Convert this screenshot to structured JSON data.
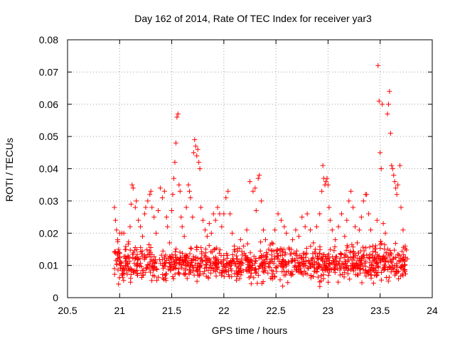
{
  "chart_data": {
    "type": "scatter",
    "title": "Day 162 of 2014, Rate Of TEC Index for receiver yar3",
    "xlabel": "GPS time / hours",
    "ylabel": "ROTI / TECUs",
    "xlim": [
      20.5,
      24
    ],
    "ylim": [
      0,
      0.08
    ],
    "x_ticks": [
      20.5,
      21,
      21.5,
      22,
      22.5,
      23,
      23.5,
      24
    ],
    "x_tick_labels": [
      "20.5",
      "21",
      "21.5",
      "22",
      "22.5",
      "23",
      "23.5",
      "24"
    ],
    "y_ticks": [
      0,
      0.01,
      0.02,
      0.03,
      0.04,
      0.05,
      0.06,
      0.07,
      0.08
    ],
    "y_tick_labels": [
      "0",
      "0.01",
      "0.02",
      "0.03",
      "0.04",
      "0.05",
      "0.06",
      "0.07",
      "0.08"
    ],
    "grid": true,
    "marker": "+",
    "color": "#ff0000",
    "x_data_range": [
      20.95,
      23.76
    ],
    "series": [
      {
        "name": "yar3",
        "points": [
          [
            20.95,
            0.028
          ],
          [
            20.96,
            0.024
          ],
          [
            20.97,
            0.021
          ],
          [
            20.98,
            0.018
          ],
          [
            20.99,
            0.015
          ],
          [
            21.0,
            0.02
          ],
          [
            21.02,
            0.02
          ],
          [
            21.04,
            0.02
          ],
          [
            21.06,
            0.015
          ],
          [
            21.08,
            0.013
          ],
          [
            21.1,
            0.022
          ],
          [
            21.11,
            0.029
          ],
          [
            21.12,
            0.035
          ],
          [
            21.13,
            0.034
          ],
          [
            21.15,
            0.028
          ],
          [
            21.16,
            0.03
          ],
          [
            21.18,
            0.024
          ],
          [
            21.2,
            0.022
          ],
          [
            21.22,
            0.019
          ],
          [
            21.24,
            0.026
          ],
          [
            21.25,
            0.028
          ],
          [
            21.27,
            0.03
          ],
          [
            21.29,
            0.032
          ],
          [
            21.3,
            0.033
          ],
          [
            21.31,
            0.028
          ],
          [
            21.33,
            0.025
          ],
          [
            21.35,
            0.02
          ],
          [
            21.37,
            0.027
          ],
          [
            21.39,
            0.034
          ],
          [
            21.41,
            0.031
          ],
          [
            21.43,
            0.033
          ],
          [
            21.45,
            0.025
          ],
          [
            21.46,
            0.022
          ],
          [
            21.48,
            0.017
          ],
          [
            21.5,
            0.027
          ],
          [
            21.51,
            0.032
          ],
          [
            21.52,
            0.037
          ],
          [
            21.53,
            0.042
          ],
          [
            21.54,
            0.048
          ],
          [
            21.55,
            0.056
          ],
          [
            21.56,
            0.057
          ],
          [
            21.57,
            0.035
          ],
          [
            21.58,
            0.033
          ],
          [
            21.59,
            0.025
          ],
          [
            21.6,
            0.022
          ],
          [
            21.62,
            0.019
          ],
          [
            21.64,
            0.028
          ],
          [
            21.66,
            0.035
          ],
          [
            21.67,
            0.033
          ],
          [
            21.68,
            0.031
          ],
          [
            21.7,
            0.025
          ],
          [
            21.71,
            0.045
          ],
          [
            21.72,
            0.049
          ],
          [
            21.73,
            0.047
          ],
          [
            21.74,
            0.044
          ],
          [
            21.75,
            0.046
          ],
          [
            21.76,
            0.042
          ],
          [
            21.77,
            0.04
          ],
          [
            21.78,
            0.028
          ],
          [
            21.8,
            0.024
          ],
          [
            21.82,
            0.021
          ],
          [
            21.84,
            0.019
          ],
          [
            21.86,
            0.023
          ],
          [
            21.88,
            0.02
          ],
          [
            21.9,
            0.026
          ],
          [
            21.92,
            0.024
          ],
          [
            21.94,
            0.028
          ],
          [
            21.96,
            0.026
          ],
          [
            21.98,
            0.022
          ],
          [
            22.0,
            0.026
          ],
          [
            22.02,
            0.031
          ],
          [
            22.04,
            0.033
          ],
          [
            22.06,
            0.026
          ],
          [
            22.08,
            0.02
          ],
          [
            22.1,
            0.016
          ],
          [
            22.13,
            0.012
          ],
          [
            22.16,
            0.018
          ],
          [
            22.19,
            0.016
          ],
          [
            22.22,
            0.021
          ],
          [
            22.25,
            0.036
          ],
          [
            22.28,
            0.033
          ],
          [
            22.3,
            0.034
          ],
          [
            22.31,
            0.027
          ],
          [
            22.33,
            0.037
          ],
          [
            22.34,
            0.038
          ],
          [
            22.36,
            0.03
          ],
          [
            22.38,
            0.021
          ],
          [
            22.4,
            0.018
          ],
          [
            22.43,
            0.015
          ],
          [
            22.46,
            0.017
          ],
          [
            22.49,
            0.021
          ],
          [
            22.52,
            0.026
          ],
          [
            22.55,
            0.024
          ],
          [
            22.58,
            0.022
          ],
          [
            22.6,
            0.02
          ],
          [
            22.63,
            0.015
          ],
          [
            22.66,
            0.018
          ],
          [
            22.69,
            0.021
          ],
          [
            22.72,
            0.019
          ],
          [
            22.75,
            0.025
          ],
          [
            22.78,
            0.022
          ],
          [
            22.8,
            0.026
          ],
          [
            22.83,
            0.021
          ],
          [
            22.86,
            0.017
          ],
          [
            22.89,
            0.022
          ],
          [
            22.92,
            0.026
          ],
          [
            22.94,
            0.033
          ],
          [
            22.95,
            0.041
          ],
          [
            22.96,
            0.037
          ],
          [
            22.97,
            0.035
          ],
          [
            22.98,
            0.036
          ],
          [
            22.99,
            0.037
          ],
          [
            23.0,
            0.035
          ],
          [
            23.01,
            0.028
          ],
          [
            23.02,
            0.024
          ],
          [
            23.04,
            0.021
          ],
          [
            23.07,
            0.018
          ],
          [
            23.1,
            0.022
          ],
          [
            23.13,
            0.026
          ],
          [
            23.16,
            0.019
          ],
          [
            23.18,
            0.024
          ],
          [
            23.2,
            0.03
          ],
          [
            23.22,
            0.033
          ],
          [
            23.24,
            0.028
          ],
          [
            23.26,
            0.022
          ],
          [
            23.28,
            0.017
          ],
          [
            23.3,
            0.021
          ],
          [
            23.32,
            0.025
          ],
          [
            23.34,
            0.03
          ],
          [
            23.36,
            0.032
          ],
          [
            23.37,
            0.032
          ],
          [
            23.39,
            0.026
          ],
          [
            23.41,
            0.021
          ],
          [
            23.43,
            0.016
          ],
          [
            23.45,
            0.015
          ],
          [
            23.47,
            0.024
          ],
          [
            23.48,
            0.072
          ],
          [
            23.49,
            0.061
          ],
          [
            23.5,
            0.045
          ],
          [
            23.51,
            0.04
          ],
          [
            23.52,
            0.06
          ],
          [
            23.53,
            0.023
          ],
          [
            23.55,
            0.02
          ],
          [
            23.57,
            0.057
          ],
          [
            23.58,
            0.06
          ],
          [
            23.59,
            0.064
          ],
          [
            23.6,
            0.051
          ],
          [
            23.61,
            0.041
          ],
          [
            23.62,
            0.04
          ],
          [
            23.63,
            0.038
          ],
          [
            23.64,
            0.036
          ],
          [
            23.65,
            0.034
          ],
          [
            23.66,
            0.032
          ],
          [
            23.67,
            0.035
          ],
          [
            23.69,
            0.041
          ],
          [
            23.7,
            0.028
          ],
          [
            23.72,
            0.021
          ],
          [
            23.74,
            0.016
          ],
          [
            23.76,
            0.012
          ]
        ],
        "baseline_band": {
          "description": "dense cluster of points between the x_data_range bounds",
          "ymin": 0.003,
          "ymax": 0.017,
          "count": 1100
        }
      }
    ]
  }
}
